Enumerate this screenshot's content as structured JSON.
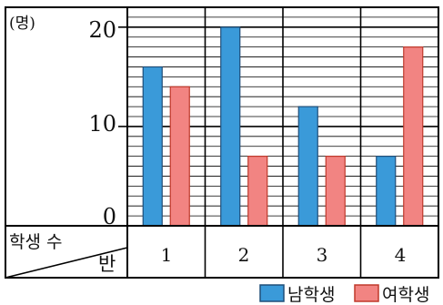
{
  "chart_data": {
    "type": "bar",
    "unit_label": "(명)",
    "corner_header": {
      "top": "학생 수",
      "bottom": "반"
    },
    "categories": [
      "1",
      "2",
      "3",
      "4"
    ],
    "series": [
      {
        "name": "남학생",
        "color": "#3a9ad9",
        "values": [
          16,
          20,
          12,
          7
        ]
      },
      {
        "name": "여학생",
        "color": "#f28482",
        "values": [
          14,
          7,
          7,
          18
        ]
      }
    ],
    "yticks": [
      "0",
      "10",
      "20"
    ],
    "ylim": [
      0,
      22
    ],
    "grid": true,
    "legend_position": "bottom-right"
  }
}
